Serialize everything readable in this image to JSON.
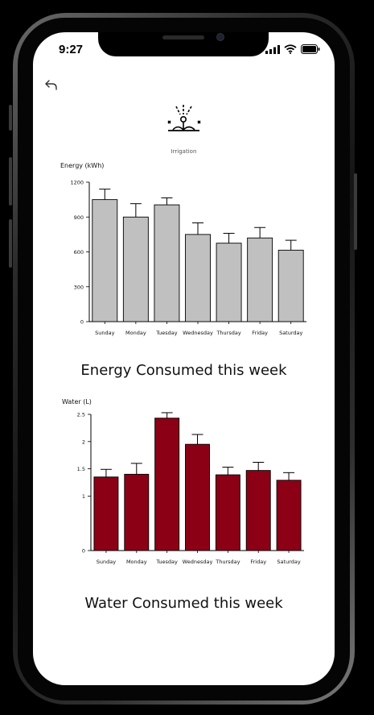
{
  "status_bar": {
    "time": "9:27"
  },
  "app": {
    "icon": "irrigation-icon",
    "label": "Irrigation",
    "back_icon": "back-arrow-icon"
  },
  "energy": {
    "caption": "Energy Consumed this week",
    "chart_data": {
      "type": "bar",
      "title": "",
      "ylabel": "Energy (kWh)",
      "xlabel": "",
      "categories": [
        "Sunday",
        "Monday",
        "Tuesday",
        "Wednesday",
        "Thursday",
        "Friday",
        "Saturday"
      ],
      "values": [
        1050,
        900,
        1005,
        750,
        675,
        720,
        615
      ],
      "errors": [
        90,
        115,
        60,
        100,
        85,
        90,
        85
      ],
      "ylim": [
        0,
        1200
      ],
      "yticks": [
        "0",
        "300",
        "600",
        "900",
        "1200"
      ],
      "bar_color": "#c0c0c0",
      "grid": false
    }
  },
  "water": {
    "caption": "Water Consumed this week",
    "chart_data": {
      "type": "bar",
      "title": "",
      "ylabel": "Water (L)",
      "xlabel": "",
      "categories": [
        "Sunday",
        "Monday",
        "Tuesday",
        "Wednesday",
        "Thursday",
        "Friday",
        "Saturday"
      ],
      "values": [
        1.35,
        1.4,
        2.43,
        1.95,
        1.39,
        1.47,
        1.29
      ],
      "errors": [
        0.14,
        0.2,
        0.1,
        0.18,
        0.14,
        0.15,
        0.14
      ],
      "ylim": [
        0,
        2.5
      ],
      "yticks": [
        "0",
        "1",
        "1.5",
        "2",
        "2.5"
      ],
      "ytick_values": [
        0,
        1,
        1.5,
        2,
        2.5
      ],
      "bar_color": "#8b0015",
      "grid": false
    }
  }
}
